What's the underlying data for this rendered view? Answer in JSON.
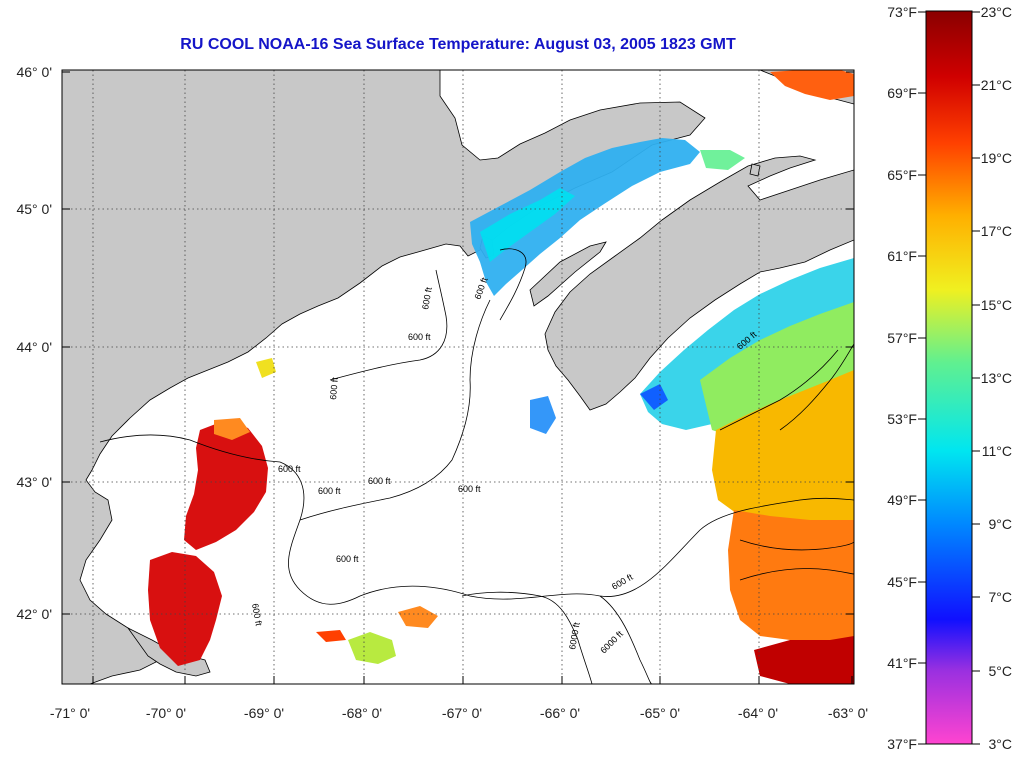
{
  "title": "RU COOL  NOAA-16  Sea Surface Temperature:  August 03, 2005 1823 GMT",
  "map": {
    "lat_labels": [
      "46° 0'",
      "45° 0'",
      "44° 0'",
      "43° 0'",
      "42° 0'"
    ],
    "lon_labels": [
      "-71° 0'",
      "-70° 0'",
      "-69° 0'",
      "-68° 0'",
      "-67° 0'",
      "-66° 0'",
      "-65° 0'",
      "-64° 0'",
      "-63° 0'"
    ],
    "contour_labels": [
      "600 ft",
      "600 ft",
      "600 ft",
      "600 ft",
      "600 ft",
      "600 ft",
      "600 ft",
      "600 ft",
      "600 ft",
      "600 ft",
      "600 ft",
      "600 ft",
      "6000 ft",
      "6000 ft"
    ],
    "colors": {
      "land": "#c8c8c8",
      "no_data": "#ffffff",
      "contour": "#000000",
      "grid": "#555555"
    }
  },
  "colorbar": {
    "fahrenheit_labels": [
      "73°F",
      "69°F",
      "65°F",
      "61°F",
      "57°F",
      "53°F",
      "49°F",
      "45°F",
      "41°F",
      "37°F"
    ],
    "celsius_labels": [
      "23°C",
      "21°C",
      "19°C",
      "17°C",
      "15°C",
      "13°C",
      "11°C",
      "9°C",
      "7°C",
      "5°C",
      "3°C"
    ],
    "min_c": 3,
    "max_c": 23,
    "colors": [
      "#ff44d0",
      "#9a30e0",
      "#1010ff",
      "#0088ff",
      "#00e6f0",
      "#60f090",
      "#f0f020",
      "#ffb000",
      "#ff4000",
      "#d00000",
      "#8a0000"
    ]
  }
}
